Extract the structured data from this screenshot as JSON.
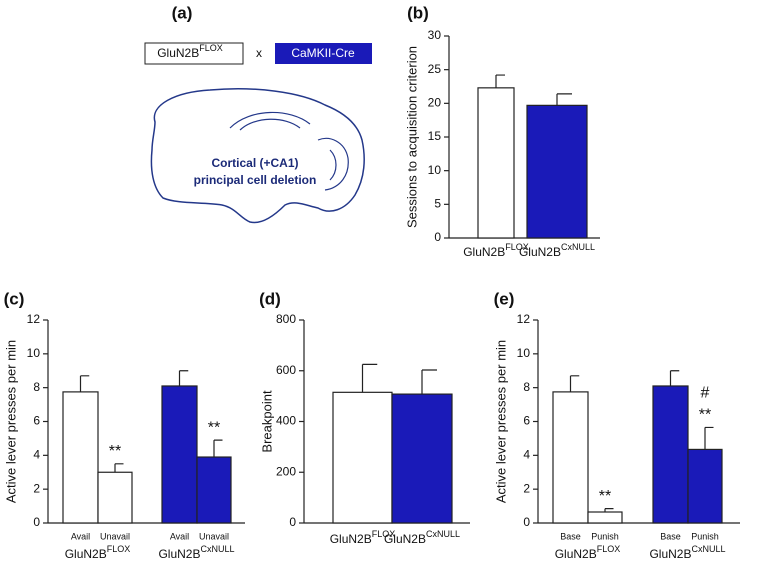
{
  "panel_a": {
    "panel": "(a)",
    "left_box": [
      "GluN2B",
      "FLOX"
    ],
    "cross": "x",
    "right_box": "CaMKII-Cre",
    "brain_text": [
      "Cortical (+CA1)",
      "principal cell deletion"
    ]
  },
  "chart_data": [
    {
      "type": "bar",
      "panel": "(b)",
      "ylabel": "Sessions to acquisition criterion",
      "categories": [
        [
          "GluN2B",
          "FLOX"
        ],
        [
          "GluN2B",
          "CxNULL"
        ]
      ],
      "values": [
        22.3,
        19.7
      ],
      "errors": [
        1.9,
        1.7
      ],
      "colors": [
        "#ffffff",
        "#1a1ab8"
      ],
      "ylim": [
        0,
        30
      ],
      "yticks": [
        0,
        5,
        10,
        15,
        20,
        25,
        30
      ]
    },
    {
      "type": "bar",
      "panel": "(c)",
      "ylabel": "Active lever presses per min",
      "categories": [
        "Avail",
        "Unavail",
        "Avail",
        "Unavail"
      ],
      "groups": [
        [
          "GluN2B",
          "FLOX"
        ],
        [
          "GluN2B",
          "CxNULL"
        ]
      ],
      "values": [
        7.75,
        3.0,
        8.1,
        3.9
      ],
      "errors": [
        0.95,
        0.5,
        0.9,
        1.0
      ],
      "colors": [
        "#ffffff",
        "#ffffff",
        "#1a1ab8",
        "#1a1ab8"
      ],
      "annotations": [
        null,
        [
          "**"
        ],
        null,
        [
          "**"
        ]
      ],
      "ylim": [
        0,
        12
      ],
      "yticks": [
        0,
        2,
        4,
        6,
        8,
        10,
        12
      ]
    },
    {
      "type": "bar",
      "panel": "(d)",
      "ylabel": "Breakpoint",
      "categories": [
        [
          "GluN2B",
          "FLOX"
        ],
        [
          "GluN2B",
          "CxNULL"
        ]
      ],
      "values": [
        515,
        508
      ],
      "errors": [
        110,
        95
      ],
      "colors": [
        "#ffffff",
        "#1a1ab8"
      ],
      "ylim": [
        0,
        800
      ],
      "yticks": [
        0,
        200,
        400,
        600,
        800
      ]
    },
    {
      "type": "bar",
      "panel": "(e)",
      "ylabel": "Active lever presses per min",
      "categories": [
        "Base",
        "Punish",
        "Base",
        "Punish"
      ],
      "groups": [
        [
          "GluN2B",
          "FLOX"
        ],
        [
          "GluN2B",
          "CxNULL"
        ]
      ],
      "values": [
        7.75,
        0.65,
        8.1,
        4.35
      ],
      "errors": [
        0.95,
        0.2,
        0.9,
        1.3
      ],
      "colors": [
        "#ffffff",
        "#ffffff",
        "#1a1ab8",
        "#1a1ab8"
      ],
      "annotations": [
        null,
        [
          "**"
        ],
        null,
        [
          "#",
          "**"
        ]
      ],
      "ylim": [
        0,
        12
      ],
      "yticks": [
        0,
        2,
        4,
        6,
        8,
        10,
        12
      ]
    }
  ]
}
